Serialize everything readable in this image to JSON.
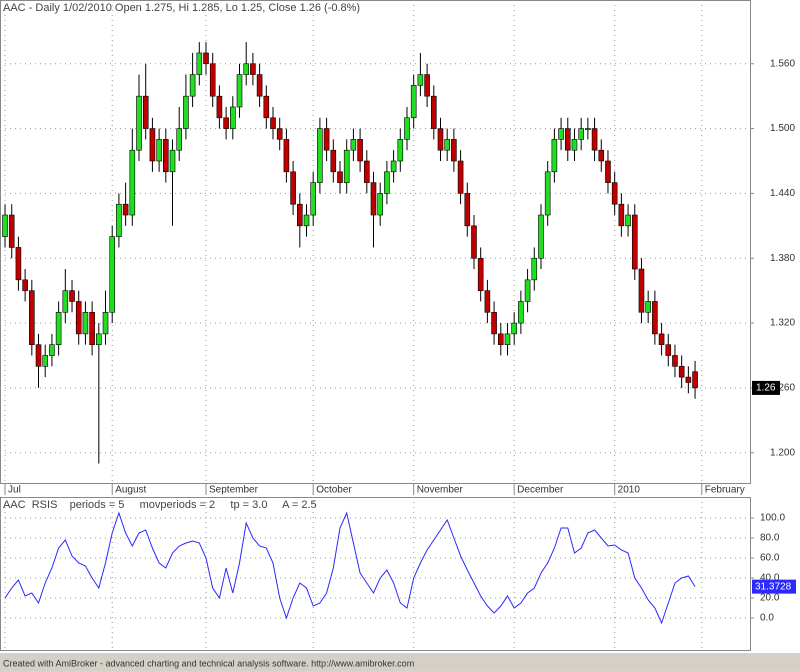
{
  "chart_data": [
    {
      "type": "candlestick",
      "title": "AAC - Daily 1/02/2010 Open 1.275, Hi 1.285, Lo 1.25, Close 1.26 (-0.8%)",
      "open": [
        1.4,
        1.42,
        1.39,
        1.36,
        1.35,
        1.3,
        1.28,
        1.29,
        1.3,
        1.33,
        1.35,
        1.34,
        1.31,
        1.33,
        1.3,
        1.31,
        1.33,
        1.4,
        1.43,
        1.42,
        1.48,
        1.53,
        1.5,
        1.47,
        1.49,
        1.46,
        1.48,
        1.5,
        1.53,
        1.55,
        1.57,
        1.56,
        1.53,
        1.51,
        1.5,
        1.52,
        1.55,
        1.56,
        1.55,
        1.53,
        1.51,
        1.5,
        1.49,
        1.46,
        1.43,
        1.41,
        1.42,
        1.45,
        1.5,
        1.48,
        1.46,
        1.45,
        1.48,
        1.49,
        1.47,
        1.45,
        1.42,
        1.44,
        1.46,
        1.47,
        1.49,
        1.51,
        1.54,
        1.55,
        1.53,
        1.5,
        1.48,
        1.49,
        1.47,
        1.44,
        1.41,
        1.38,
        1.35,
        1.33,
        1.31,
        1.3,
        1.31,
        1.32,
        1.34,
        1.36,
        1.38,
        1.42,
        1.46,
        1.49,
        1.5,
        1.48,
        1.49,
        1.5,
        1.5,
        1.48,
        1.47,
        1.45,
        1.43,
        1.41,
        1.42,
        1.37,
        1.33,
        1.34,
        1.31,
        1.3,
        1.29,
        1.28,
        1.27,
        1.275
      ],
      "high": [
        1.43,
        1.43,
        1.4,
        1.37,
        1.36,
        1.31,
        1.3,
        1.31,
        1.34,
        1.37,
        1.36,
        1.35,
        1.34,
        1.34,
        1.32,
        1.35,
        1.41,
        1.44,
        1.45,
        1.5,
        1.55,
        1.56,
        1.51,
        1.5,
        1.5,
        1.49,
        1.52,
        1.55,
        1.57,
        1.58,
        1.58,
        1.57,
        1.54,
        1.52,
        1.53,
        1.56,
        1.58,
        1.57,
        1.56,
        1.54,
        1.52,
        1.51,
        1.5,
        1.47,
        1.44,
        1.43,
        1.46,
        1.51,
        1.51,
        1.49,
        1.47,
        1.49,
        1.5,
        1.5,
        1.48,
        1.46,
        1.45,
        1.47,
        1.48,
        1.5,
        1.52,
        1.55,
        1.57,
        1.56,
        1.54,
        1.51,
        1.5,
        1.5,
        1.48,
        1.45,
        1.42,
        1.39,
        1.36,
        1.34,
        1.32,
        1.32,
        1.33,
        1.35,
        1.37,
        1.39,
        1.43,
        1.47,
        1.5,
        1.51,
        1.51,
        1.5,
        1.51,
        1.51,
        1.51,
        1.49,
        1.48,
        1.46,
        1.44,
        1.43,
        1.43,
        1.38,
        1.35,
        1.35,
        1.32,
        1.31,
        1.3,
        1.29,
        1.28,
        1.285
      ],
      "low": [
        1.39,
        1.38,
        1.35,
        1.34,
        1.29,
        1.26,
        1.27,
        1.28,
        1.29,
        1.32,
        1.33,
        1.3,
        1.3,
        1.29,
        1.19,
        1.3,
        1.32,
        1.39,
        1.41,
        1.41,
        1.47,
        1.49,
        1.46,
        1.46,
        1.45,
        1.41,
        1.47,
        1.49,
        1.52,
        1.54,
        1.55,
        1.52,
        1.5,
        1.49,
        1.49,
        1.51,
        1.54,
        1.54,
        1.52,
        1.5,
        1.49,
        1.48,
        1.45,
        1.42,
        1.39,
        1.4,
        1.41,
        1.44,
        1.47,
        1.45,
        1.44,
        1.44,
        1.47,
        1.46,
        1.44,
        1.39,
        1.41,
        1.43,
        1.45,
        1.46,
        1.48,
        1.5,
        1.53,
        1.52,
        1.49,
        1.47,
        1.47,
        1.46,
        1.43,
        1.4,
        1.37,
        1.34,
        1.32,
        1.3,
        1.29,
        1.29,
        1.3,
        1.31,
        1.33,
        1.35,
        1.37,
        1.41,
        1.45,
        1.48,
        1.47,
        1.47,
        1.48,
        1.49,
        1.47,
        1.46,
        1.44,
        1.42,
        1.4,
        1.4,
        1.36,
        1.32,
        1.32,
        1.3,
        1.29,
        1.28,
        1.27,
        1.26,
        1.255,
        1.25
      ],
      "close": [
        1.42,
        1.39,
        1.36,
        1.35,
        1.3,
        1.28,
        1.29,
        1.3,
        1.33,
        1.35,
        1.34,
        1.31,
        1.33,
        1.3,
        1.31,
        1.33,
        1.4,
        1.43,
        1.42,
        1.48,
        1.53,
        1.5,
        1.47,
        1.49,
        1.46,
        1.48,
        1.5,
        1.53,
        1.55,
        1.57,
        1.56,
        1.53,
        1.51,
        1.5,
        1.52,
        1.55,
        1.56,
        1.55,
        1.53,
        1.51,
        1.5,
        1.49,
        1.46,
        1.43,
        1.41,
        1.42,
        1.45,
        1.5,
        1.48,
        1.46,
        1.45,
        1.48,
        1.49,
        1.47,
        1.45,
        1.42,
        1.44,
        1.46,
        1.47,
        1.49,
        1.51,
        1.54,
        1.55,
        1.53,
        1.5,
        1.48,
        1.49,
        1.47,
        1.44,
        1.41,
        1.38,
        1.35,
        1.33,
        1.31,
        1.3,
        1.31,
        1.32,
        1.34,
        1.36,
        1.38,
        1.42,
        1.46,
        1.49,
        1.5,
        1.48,
        1.49,
        1.5,
        1.5,
        1.48,
        1.47,
        1.45,
        1.43,
        1.41,
        1.42,
        1.37,
        1.33,
        1.34,
        1.31,
        1.3,
        1.29,
        1.28,
        1.27,
        1.265,
        1.26
      ],
      "up_color": "#22dd22",
      "down_color": "#c00000",
      "xlim": [
        -0.75,
        111.2
      ],
      "xticks": [
        {
          "value": 0,
          "label": "Jul"
        },
        {
          "value": 16,
          "label": "August"
        },
        {
          "value": 30,
          "label": "September"
        },
        {
          "value": 46,
          "label": "October"
        },
        {
          "value": 61,
          "label": "November"
        },
        {
          "value": 76,
          "label": "December"
        },
        {
          "value": 91,
          "label": "2010"
        },
        {
          "value": 104,
          "label": "February"
        }
      ],
      "ylim": [
        1.172,
        1.619
      ],
      "yticks": [
        {
          "value": 1.2,
          "label": "1.200"
        },
        {
          "value": 1.26,
          "label": "1.260"
        },
        {
          "value": 1.32,
          "label": "1.320"
        },
        {
          "value": 1.38,
          "label": "1.380"
        },
        {
          "value": 1.44,
          "label": "1.440"
        },
        {
          "value": 1.5,
          "label": "1.500"
        },
        {
          "value": 1.56,
          "label": "1.560"
        }
      ],
      "grid": true
    },
    {
      "type": "line",
      "title": "AAC  RSIS    periods = 5     movperiods = 2     tp = 3.0     A = 2.5",
      "values": [
        20,
        30,
        38,
        22,
        25,
        15,
        35,
        50,
        70,
        78,
        62,
        55,
        52,
        40,
        30,
        55,
        85,
        105,
        85,
        72,
        85,
        88,
        70,
        55,
        50,
        65,
        72,
        75,
        77,
        75,
        60,
        30,
        20,
        50,
        25,
        55,
        95,
        80,
        72,
        70,
        55,
        20,
        0,
        20,
        35,
        30,
        12,
        15,
        25,
        50,
        90,
        105,
        75,
        45,
        35,
        25,
        40,
        48,
        35,
        15,
        10,
        40,
        55,
        68,
        78,
        88,
        98,
        80,
        62,
        48,
        35,
        22,
        12,
        5,
        12,
        22,
        10,
        15,
        25,
        30,
        45,
        55,
        70,
        90,
        90,
        65,
        70,
        85,
        88,
        80,
        72,
        73,
        68,
        65,
        40,
        30,
        18,
        10,
        -5,
        15,
        35,
        40,
        42,
        31.3728
      ],
      "color": "#2a2aff",
      "ylim": [
        -32,
        121
      ],
      "yticks": [
        {
          "value": 0,
          "label": "0.0"
        },
        {
          "value": 20,
          "label": "20.0"
        },
        {
          "value": 40,
          "label": "40.0"
        },
        {
          "value": 60,
          "label": "60.0"
        },
        {
          "value": 80,
          "label": "80.0"
        },
        {
          "value": 100,
          "label": "100.0"
        }
      ],
      "grid": true
    }
  ],
  "footer": "Created with AmiBroker - advanced charting and technical analysis software. http://www.amibroker.com"
}
